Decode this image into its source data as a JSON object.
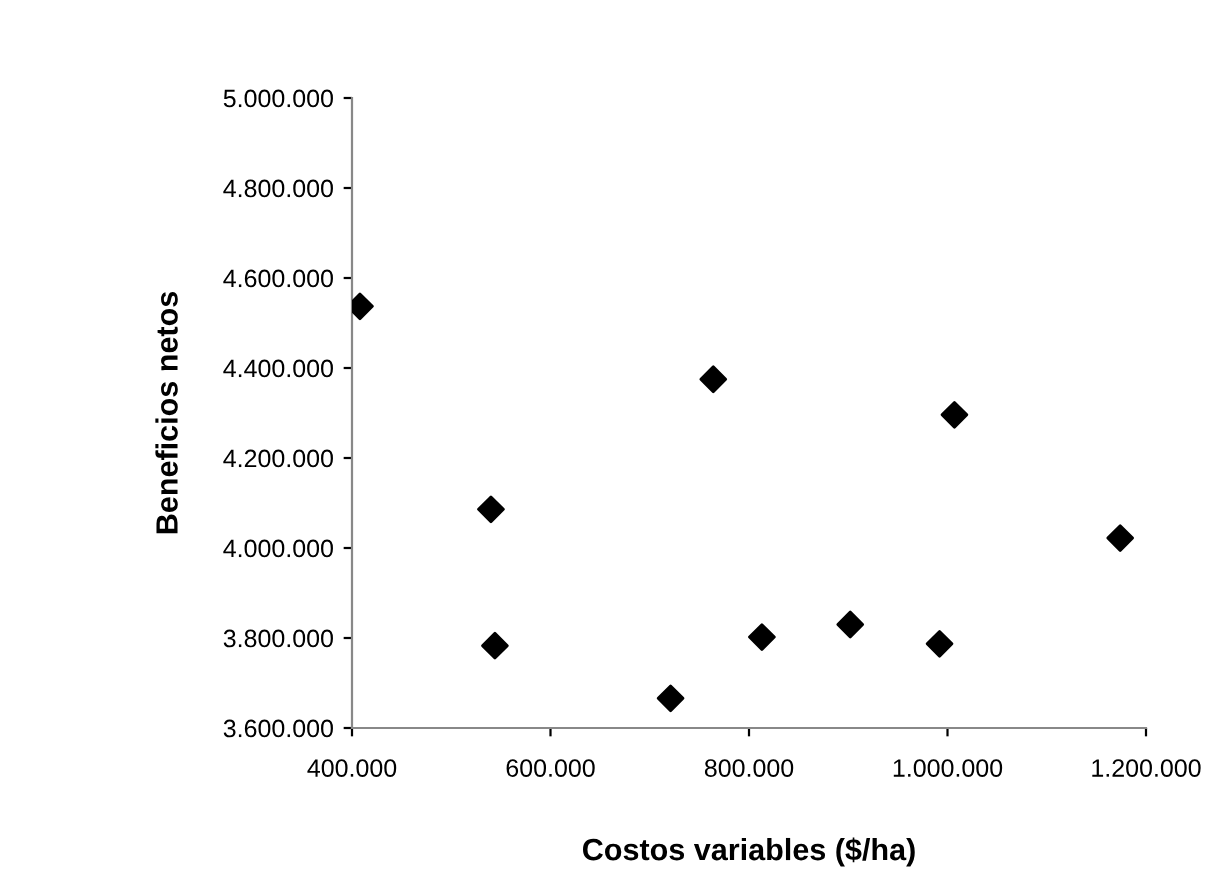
{
  "chart_data": {
    "type": "scatter",
    "xlabel": "Costos variables ($/ha)",
    "ylabel": "Beneficios netos",
    "x": [
      408000,
      540000,
      544000,
      721000,
      764000,
      813000,
      902000,
      992000,
      1007000,
      1174000
    ],
    "series": [
      {
        "color": "#000000",
        "values": [
          4537000,
          4086000,
          3783000,
          3666000,
          4375000,
          3802000,
          3830000,
          3787000,
          4296000,
          4022000
        ]
      }
    ],
    "marker": "diamond",
    "grid": false,
    "xlim": [
      400000,
      1200000
    ],
    "xticks": [
      {
        "value": 400000,
        "label": "400.000"
      },
      {
        "value": 600000,
        "label": "600.000"
      },
      {
        "value": 800000,
        "label": "800.000"
      },
      {
        "value": 1000000,
        "label": "1.000.000"
      },
      {
        "value": 1200000,
        "label": "1.200.000"
      }
    ],
    "ylim": [
      3600000,
      5000000
    ],
    "yticks": [
      {
        "value": 3600000,
        "label": "3.600.000"
      },
      {
        "value": 3800000,
        "label": "3.800.000"
      },
      {
        "value": 4000000,
        "label": "4.000.000"
      },
      {
        "value": 4200000,
        "label": "4.200.000"
      },
      {
        "value": 4400000,
        "label": "4.400.000"
      },
      {
        "value": 4600000,
        "label": "4.600.000"
      },
      {
        "value": 4800000,
        "label": "4.800.000"
      },
      {
        "value": 5000000,
        "label": "5.000.000"
      }
    ]
  }
}
